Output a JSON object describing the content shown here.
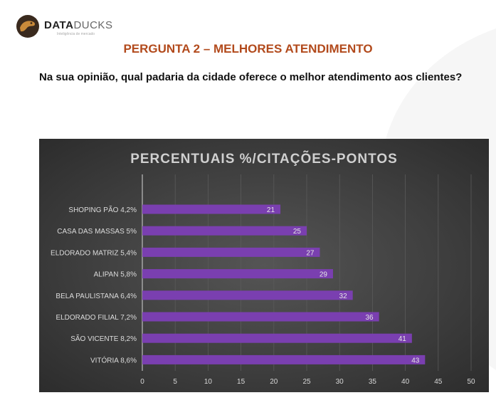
{
  "header": {
    "brand_strong": "DATA",
    "brand_light": "DUCKS",
    "tagline": "Inteligência de mercado"
  },
  "section_title": "PERGUNTA 2 – MELHORES ATENDIMENTO",
  "question": "Na sua opinião, qual padaria da cidade oferece o melhor atendimento aos clientes?",
  "colors": {
    "bar": "#7a3fb0",
    "bar_highlight": "#8a4dc4",
    "panel_bg": "#444444",
    "title_color": "#d0d0d0",
    "accent": "#b24a1c"
  },
  "chart_data": {
    "type": "bar",
    "orientation": "horizontal",
    "title": "PERCENTUAIS %/CITAÇÕES-PONTOS",
    "categories": [
      "SHOPING PÃO 4,2%",
      "CASA DAS MASSAS 5%",
      "ELDORADO MATRIZ 5,4%",
      "ALIPAN 5,8%",
      "BELA PAULISTANA 6,4%",
      "ELDORADO FILIAL 7,2%",
      "SÃO VICENTE 8,2%",
      "VITÓRIA 8,6%"
    ],
    "values": [
      21,
      25,
      27,
      29,
      32,
      36,
      41,
      43
    ],
    "xlim": [
      0,
      50
    ],
    "xticks": [
      0,
      5,
      10,
      15,
      20,
      25,
      30,
      35,
      40,
      45,
      50
    ],
    "grid": true,
    "xlabel": "",
    "ylabel": ""
  }
}
